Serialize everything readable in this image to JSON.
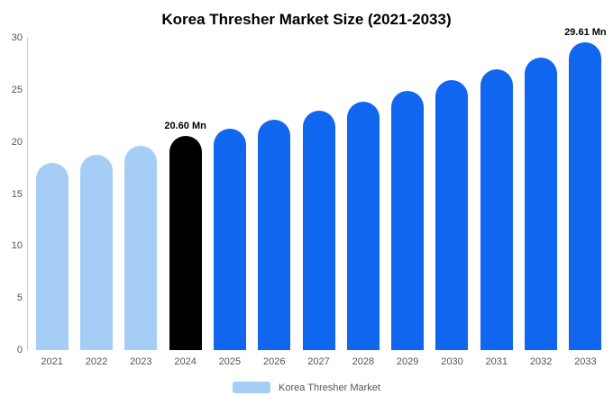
{
  "chart_data": {
    "type": "bar",
    "title": "Korea Thresher Market Size (2021-2033)",
    "unit": "Mn",
    "categories": [
      "2021",
      "2022",
      "2023",
      "2024",
      "2025",
      "2026",
      "2027",
      "2028",
      "2029",
      "2030",
      "2031",
      "2032",
      "2033"
    ],
    "values": [
      18.0,
      18.8,
      19.6,
      20.6,
      21.3,
      22.1,
      23.0,
      23.9,
      24.9,
      25.9,
      27.0,
      28.1,
      29.61
    ],
    "bar_colors": [
      "light",
      "light",
      "light",
      "black",
      "blue",
      "blue",
      "blue",
      "blue",
      "blue",
      "blue",
      "blue",
      "blue",
      "blue"
    ],
    "palette": {
      "light": "#A6CDF5",
      "blue": "#1166F0",
      "black": "#000000"
    },
    "value_labels": {
      "2024": "20.60 Mn",
      "2033": "29.61 Mn"
    },
    "ylim": [
      0,
      30
    ],
    "yticks": [
      0,
      5,
      10,
      15,
      20,
      25,
      30
    ],
    "grid": false,
    "legend_position": "bottom",
    "legend": [
      {
        "label": "Korea Thresher Market",
        "color": "#A6CDF5"
      }
    ]
  }
}
